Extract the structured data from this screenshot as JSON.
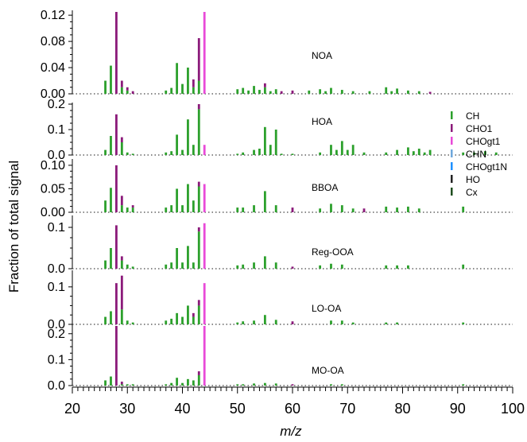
{
  "chart_data": {
    "type": "bar",
    "stacked": true,
    "xlabel": "m/z",
    "ylabel": "Fraction of total signal",
    "xlim": [
      20,
      100
    ],
    "xticks": [
      20,
      30,
      40,
      50,
      60,
      70,
      80,
      90,
      100
    ],
    "legend": {
      "placement": "right",
      "entries": [
        {
          "name": "CH",
          "color": "#2ca02c"
        },
        {
          "name": "CHO1",
          "color": "#8b1a7a"
        },
        {
          "name": "CHOgt1",
          "color": "#e84ad8"
        },
        {
          "name": "CHN",
          "color": "#6fa8dc"
        },
        {
          "name": "CHOgt1N",
          "color": "#1e90ff"
        },
        {
          "name": "HO",
          "color": "#222222"
        },
        {
          "name": "Cx",
          "color": "#1f4e1f"
        }
      ]
    },
    "panels": [
      {
        "label": "NOA",
        "ylim": [
          0,
          0.125
        ],
        "yticks": [
          0,
          0.04,
          0.08,
          0.12
        ],
        "ytick_labels": [
          "0.00",
          "0.04",
          "0.08",
          "0.12"
        ],
        "peaks": [
          {
            "mz": 26,
            "CH": 0.02
          },
          {
            "mz": 27,
            "CH": 0.043
          },
          {
            "mz": 28,
            "CHO1": 0.125
          },
          {
            "mz": 29,
            "CH": 0.01,
            "CHO1": 0.01
          },
          {
            "mz": 30,
            "CH": 0.005,
            "CHO1": 0.005
          },
          {
            "mz": 31,
            "CHO1": 0.004
          },
          {
            "mz": 37,
            "CH": 0.005
          },
          {
            "mz": 38,
            "CH": 0.009
          },
          {
            "mz": 39,
            "CH": 0.047
          },
          {
            "mz": 40,
            "CH": 0.015
          },
          {
            "mz": 41,
            "CH": 0.04
          },
          {
            "mz": 42,
            "CH": 0.01,
            "CHO1": 0.012
          },
          {
            "mz": 43,
            "CH": 0.02,
            "CHO1": 0.065
          },
          {
            "mz": 44,
            "CHOgt1": 0.125
          },
          {
            "mz": 50,
            "CH": 0.007
          },
          {
            "mz": 51,
            "CH": 0.009
          },
          {
            "mz": 52,
            "CH": 0.005
          },
          {
            "mz": 53,
            "CH": 0.012
          },
          {
            "mz": 54,
            "CH": 0.006
          },
          {
            "mz": 55,
            "CH": 0.01,
            "CHO1": 0.006
          },
          {
            "mz": 56,
            "CH": 0.004
          },
          {
            "mz": 57,
            "CH": 0.007
          },
          {
            "mz": 58,
            "CHO1": 0.004
          },
          {
            "mz": 60,
            "CHO1": 0.005
          },
          {
            "mz": 63,
            "CH": 0.005
          },
          {
            "mz": 65,
            "CH": 0.007
          },
          {
            "mz": 66,
            "CH": 0.004
          },
          {
            "mz": 67,
            "CH": 0.009
          },
          {
            "mz": 69,
            "CH": 0.006
          },
          {
            "mz": 71,
            "CH": 0.004
          },
          {
            "mz": 74,
            "CH": 0.004
          },
          {
            "mz": 77,
            "CH": 0.01
          },
          {
            "mz": 78,
            "CH": 0.004
          },
          {
            "mz": 79,
            "CH": 0.008
          },
          {
            "mz": 81,
            "CH": 0.005
          },
          {
            "mz": 83,
            "CH": 0.004
          },
          {
            "mz": 85,
            "CHO1": 0.003
          }
        ]
      },
      {
        "label": "HOA",
        "ylim": [
          0,
          0.2
        ],
        "yticks": [
          0,
          0.1,
          0.2
        ],
        "ytick_labels": [
          "0.0",
          "0.1",
          "0.2"
        ],
        "peaks": [
          {
            "mz": 26,
            "CH": 0.02
          },
          {
            "mz": 27,
            "CH": 0.075
          },
          {
            "mz": 28,
            "CHO1": 0.16
          },
          {
            "mz": 29,
            "CH": 0.05,
            "CHO1": 0.02
          },
          {
            "mz": 30,
            "CH": 0.01
          },
          {
            "mz": 31,
            "CH": 0.005
          },
          {
            "mz": 37,
            "CH": 0.01
          },
          {
            "mz": 38,
            "CH": 0.015
          },
          {
            "mz": 39,
            "CH": 0.08
          },
          {
            "mz": 40,
            "CH": 0.02
          },
          {
            "mz": 41,
            "CH": 0.14
          },
          {
            "mz": 42,
            "CH": 0.04
          },
          {
            "mz": 43,
            "CH": 0.18,
            "CHO1": 0.02
          },
          {
            "mz": 44,
            "CHOgt1": 0.04
          },
          {
            "mz": 50,
            "CH": 0.005
          },
          {
            "mz": 51,
            "CH": 0.01
          },
          {
            "mz": 53,
            "CH": 0.02
          },
          {
            "mz": 54,
            "CH": 0.025
          },
          {
            "mz": 55,
            "CH": 0.11
          },
          {
            "mz": 56,
            "CH": 0.04
          },
          {
            "mz": 57,
            "CH": 0.1
          },
          {
            "mz": 58,
            "CH": 0.005
          },
          {
            "mz": 60,
            "CH": 0.005
          },
          {
            "mz": 65,
            "CH": 0.01
          },
          {
            "mz": 67,
            "CH": 0.04
          },
          {
            "mz": 68,
            "CH": 0.02
          },
          {
            "mz": 69,
            "CH": 0.055
          },
          {
            "mz": 70,
            "CH": 0.02
          },
          {
            "mz": 71,
            "CH": 0.04
          },
          {
            "mz": 73,
            "CH": 0.01
          },
          {
            "mz": 77,
            "CH": 0.01
          },
          {
            "mz": 79,
            "CH": 0.02
          },
          {
            "mz": 81,
            "CH": 0.03
          },
          {
            "mz": 82,
            "CH": 0.015
          },
          {
            "mz": 83,
            "CH": 0.025
          },
          {
            "mz": 84,
            "CH": 0.01
          },
          {
            "mz": 85,
            "CH": 0.02
          },
          {
            "mz": 91,
            "CH": 0.01
          },
          {
            "mz": 93,
            "CH": 0.01
          },
          {
            "mz": 95,
            "CH": 0.015
          },
          {
            "mz": 97,
            "CH": 0.01
          }
        ]
      },
      {
        "label": "BBOA",
        "ylim": [
          0,
          0.11
        ],
        "yticks": [
          0,
          0.05,
          0.1
        ],
        "ytick_labels": [
          "0.00",
          "0.05",
          "0.10"
        ],
        "peaks": [
          {
            "mz": 26,
            "CH": 0.025
          },
          {
            "mz": 27,
            "CH": 0.052
          },
          {
            "mz": 28,
            "CHO1": 0.1
          },
          {
            "mz": 29,
            "CH": 0.015,
            "CHO1": 0.02
          },
          {
            "mz": 30,
            "CH": 0.01
          },
          {
            "mz": 31,
            "CH": 0.01,
            "CHO1": 0.005
          },
          {
            "mz": 37,
            "CH": 0.01
          },
          {
            "mz": 38,
            "CH": 0.015
          },
          {
            "mz": 39,
            "CH": 0.05
          },
          {
            "mz": 40,
            "CH": 0.015
          },
          {
            "mz": 41,
            "CH": 0.06
          },
          {
            "mz": 42,
            "CH": 0.025
          },
          {
            "mz": 43,
            "CH": 0.055,
            "CHO1": 0.01
          },
          {
            "mz": 44,
            "CHOgt1": 0.06
          },
          {
            "mz": 50,
            "CH": 0.01
          },
          {
            "mz": 51,
            "CH": 0.01
          },
          {
            "mz": 53,
            "CH": 0.015
          },
          {
            "mz": 55,
            "CH": 0.045
          },
          {
            "mz": 57,
            "CH": 0.015
          },
          {
            "mz": 60,
            "CHO1": 0.01
          },
          {
            "mz": 65,
            "CH": 0.008
          },
          {
            "mz": 67,
            "CH": 0.018
          },
          {
            "mz": 69,
            "CH": 0.015
          },
          {
            "mz": 71,
            "CH": 0.008
          },
          {
            "mz": 73,
            "CHO1": 0.008
          },
          {
            "mz": 77,
            "CH": 0.012
          },
          {
            "mz": 79,
            "CH": 0.01
          },
          {
            "mz": 81,
            "CH": 0.012
          },
          {
            "mz": 83,
            "CH": 0.008
          },
          {
            "mz": 91,
            "CH": 0.012
          }
        ]
      },
      {
        "label": "Reg-OOA",
        "ylim": [
          0,
          0.125
        ],
        "yticks": [
          0,
          0.1
        ],
        "ytick_labels": [
          "0.0",
          "0.1"
        ],
        "peaks": [
          {
            "mz": 26,
            "CH": 0.02
          },
          {
            "mz": 27,
            "CH": 0.05
          },
          {
            "mz": 28,
            "CHO1": 0.105
          },
          {
            "mz": 29,
            "CH": 0.02,
            "CHO1": 0.01
          },
          {
            "mz": 30,
            "CH": 0.01
          },
          {
            "mz": 31,
            "CH": 0.005
          },
          {
            "mz": 37,
            "CH": 0.01
          },
          {
            "mz": 38,
            "CH": 0.015
          },
          {
            "mz": 39,
            "CH": 0.05
          },
          {
            "mz": 40,
            "CH": 0.015
          },
          {
            "mz": 41,
            "CH": 0.055
          },
          {
            "mz": 42,
            "CH": 0.015
          },
          {
            "mz": 43,
            "CH": 0.09,
            "CHO1": 0.01
          },
          {
            "mz": 44,
            "CHOgt1": 0.11
          },
          {
            "mz": 50,
            "CH": 0.008
          },
          {
            "mz": 51,
            "CH": 0.01
          },
          {
            "mz": 53,
            "CH": 0.015
          },
          {
            "mz": 55,
            "CH": 0.03
          },
          {
            "mz": 57,
            "CH": 0.015
          },
          {
            "mz": 60,
            "CHO1": 0.005
          },
          {
            "mz": 65,
            "CH": 0.008
          },
          {
            "mz": 67,
            "CH": 0.012
          },
          {
            "mz": 69,
            "CH": 0.01
          },
          {
            "mz": 77,
            "CH": 0.008
          },
          {
            "mz": 79,
            "CH": 0.008
          },
          {
            "mz": 81,
            "CH": 0.008
          },
          {
            "mz": 91,
            "CH": 0.01
          }
        ]
      },
      {
        "label": "LO-OA",
        "ylim": [
          0,
          0.14
        ],
        "yticks": [
          0,
          0.1
        ],
        "ytick_labels": [
          "0.0",
          "0.1"
        ],
        "peaks": [
          {
            "mz": 26,
            "CH": 0.02
          },
          {
            "mz": 27,
            "CH": 0.035
          },
          {
            "mz": 28,
            "CHO1": 0.11
          },
          {
            "mz": 29,
            "CH": 0.04,
            "CHO1": 0.09
          },
          {
            "mz": 30,
            "CH": 0.01
          },
          {
            "mz": 31,
            "CH": 0.005
          },
          {
            "mz": 37,
            "CH": 0.01
          },
          {
            "mz": 38,
            "CH": 0.015
          },
          {
            "mz": 39,
            "CH": 0.03
          },
          {
            "mz": 40,
            "CH": 0.02
          },
          {
            "mz": 41,
            "CH": 0.05
          },
          {
            "mz": 42,
            "CH": 0.02,
            "CHO1": 0.01
          },
          {
            "mz": 43,
            "CH": 0.05,
            "CHO1": 0.015
          },
          {
            "mz": 44,
            "CHOgt1": 0.11
          },
          {
            "mz": 50,
            "CH": 0.005
          },
          {
            "mz": 51,
            "CH": 0.008
          },
          {
            "mz": 53,
            "CH": 0.01
          },
          {
            "mz": 55,
            "CH": 0.025
          },
          {
            "mz": 57,
            "CH": 0.012
          },
          {
            "mz": 60,
            "CHO1": 0.008
          },
          {
            "mz": 67,
            "CH": 0.01
          },
          {
            "mz": 69,
            "CH": 0.01
          },
          {
            "mz": 71,
            "CH": 0.005
          },
          {
            "mz": 77,
            "CH": 0.005
          },
          {
            "mz": 79,
            "CH": 0.005
          },
          {
            "mz": 91,
            "CH": 0.005
          }
        ]
      },
      {
        "label": "MO-OA",
        "ylim": [
          0,
          0.23
        ],
        "yticks": [
          0,
          0.1,
          0.2
        ],
        "ytick_labels": [
          "0.0",
          "0.1",
          "0.2"
        ],
        "peaks": [
          {
            "mz": 26,
            "CH": 0.02
          },
          {
            "mz": 27,
            "CH": 0.035
          },
          {
            "mz": 28,
            "CHO1": 0.23
          },
          {
            "mz": 29,
            "CH": 0.005,
            "CHO1": 0.01
          },
          {
            "mz": 30,
            "CH": 0.005
          },
          {
            "mz": 31,
            "CH": 0.005
          },
          {
            "mz": 37,
            "CH": 0.005
          },
          {
            "mz": 38,
            "CH": 0.01
          },
          {
            "mz": 39,
            "CH": 0.03
          },
          {
            "mz": 40,
            "CH": 0.01
          },
          {
            "mz": 41,
            "CH": 0.025
          },
          {
            "mz": 42,
            "CH": 0.02
          },
          {
            "mz": 43,
            "CH": 0.04,
            "CHO1": 0.015
          },
          {
            "mz": 44,
            "CHOgt1": 0.23
          },
          {
            "mz": 50,
            "CH": 0.005
          },
          {
            "mz": 51,
            "CH": 0.005
          },
          {
            "mz": 53,
            "CH": 0.008
          },
          {
            "mz": 55,
            "CH": 0.01
          },
          {
            "mz": 57,
            "CH": 0.008
          },
          {
            "mz": 60,
            "CHO1": 0.005
          },
          {
            "mz": 67,
            "CH": 0.005
          },
          {
            "mz": 69,
            "CH": 0.005
          },
          {
            "mz": 91,
            "CH": 0.005
          }
        ]
      }
    ]
  }
}
